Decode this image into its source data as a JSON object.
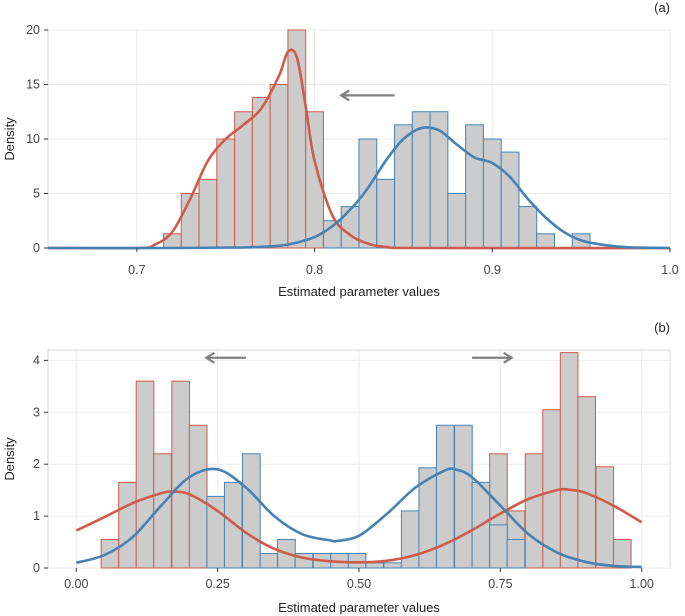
{
  "chart_data": [
    {
      "type": "histogram",
      "panel_label": "(a)",
      "xlabel": "Estimated parameter values",
      "ylabel": "Density",
      "xlim": [
        0.65,
        1.0
      ],
      "ylim": [
        0,
        20
      ],
      "xticks": [
        0.7,
        0.8,
        0.9,
        1.0
      ],
      "xtick_labels": [
        "0.7",
        "0.8",
        "0.9",
        "1.0"
      ],
      "yticks": [
        0,
        5,
        10,
        15,
        20
      ],
      "ytick_labels": [
        "0",
        "5",
        "10",
        "15",
        "20"
      ],
      "bin_width": 0.01,
      "series": [
        {
          "name": "red",
          "color": "#cd5c4a",
          "bin_starts": [
            0.715,
            0.725,
            0.735,
            0.745,
            0.755,
            0.765,
            0.775,
            0.785,
            0.795,
            0.805
          ],
          "values": [
            1.3,
            5,
            6.3,
            10,
            12.5,
            13.8,
            15,
            20,
            12.5,
            1.3
          ],
          "curve_x": [
            0.65,
            0.7,
            0.71,
            0.72,
            0.73,
            0.74,
            0.75,
            0.76,
            0.77,
            0.78,
            0.785,
            0.79,
            0.795,
            0.8,
            0.81,
            0.82,
            0.83,
            0.84,
            0.86,
            1.0
          ],
          "curve_y": [
            0,
            0,
            0.3,
            1.5,
            4.5,
            8,
            10,
            11.3,
            12.8,
            15.8,
            18,
            17.5,
            13,
            8,
            3,
            1.2,
            0.4,
            0.1,
            0,
            0
          ]
        },
        {
          "name": "blue",
          "color": "#4682b4",
          "bin_starts": [
            0.805,
            0.815,
            0.825,
            0.835,
            0.845,
            0.855,
            0.865,
            0.875,
            0.885,
            0.895,
            0.905,
            0.915,
            0.925,
            0.935,
            0.945
          ],
          "values": [
            2.5,
            3.8,
            10,
            6.3,
            11.3,
            12.5,
            12.5,
            5,
            11.3,
            10,
            8.8,
            3.8,
            1.3,
            0,
            1.3
          ],
          "curve_x": [
            0.65,
            0.72,
            0.76,
            0.78,
            0.79,
            0.8,
            0.81,
            0.82,
            0.83,
            0.84,
            0.85,
            0.86,
            0.87,
            0.88,
            0.89,
            0.9,
            0.91,
            0.92,
            0.93,
            0.94,
            0.95,
            0.96,
            0.97,
            0.98,
            1.0
          ],
          "curve_y": [
            0,
            0,
            0.05,
            0.2,
            0.5,
            1,
            2,
            3.5,
            5.5,
            8,
            10,
            11,
            10.8,
            9.5,
            8.3,
            7.8,
            6.5,
            4.5,
            2.8,
            1.5,
            0.7,
            0.35,
            0.15,
            0.05,
            0
          ]
        }
      ],
      "arrows": [
        {
          "direction": "left",
          "from": 0.845,
          "to": 0.815,
          "y": 14
        }
      ]
    },
    {
      "type": "histogram",
      "panel_label": "(b)",
      "xlabel": "Estimated parameter values",
      "ylabel": "Density",
      "xlim": [
        -0.05,
        1.05
      ],
      "ylim": [
        0,
        4.2
      ],
      "xticks": [
        0,
        0.25,
        0.5,
        0.75,
        1.0
      ],
      "xtick_labels": [
        "0.00",
        "0.25",
        "0.50",
        "0.75",
        "1.00"
      ],
      "yticks": [
        0,
        1,
        2,
        3,
        4
      ],
      "ytick_labels": [
        "0",
        "1",
        "2",
        "3",
        "4"
      ],
      "bin_width": 0.0312,
      "series": [
        {
          "name": "red",
          "color": "#cd5c4a",
          "bin_starts": [
            0.044,
            0.075,
            0.106,
            0.137,
            0.169,
            0.2,
            0.231,
            0.262,
            0.294,
            0.731,
            0.762,
            0.794,
            0.825,
            0.856,
            0.887,
            0.919,
            0.95
          ],
          "values": [
            0.55,
            1.65,
            3.6,
            2.2,
            3.6,
            2.75,
            0.8,
            0.8,
            0.4,
            2.2,
            1.1,
            2.2,
            3.05,
            4.15,
            3.3,
            1.95,
            0.55
          ],
          "curve_x": [
            0,
            0.05,
            0.1,
            0.15,
            0.17,
            0.2,
            0.25,
            0.3,
            0.35,
            0.4,
            0.45,
            0.5,
            0.55,
            0.6,
            0.65,
            0.7,
            0.75,
            0.8,
            0.85,
            0.87,
            0.9,
            0.95,
            1.0
          ],
          "curve_y": [
            0.72,
            0.98,
            1.25,
            1.44,
            1.47,
            1.42,
            1.1,
            0.68,
            0.37,
            0.2,
            0.13,
            0.11,
            0.14,
            0.25,
            0.45,
            0.73,
            1.05,
            1.33,
            1.5,
            1.51,
            1.45,
            1.2,
            0.88
          ]
        },
        {
          "name": "blue",
          "color": "#4682b4",
          "bin_starts": [
            0.231,
            0.262,
            0.294,
            0.325,
            0.356,
            0.387,
            0.419,
            0.45,
            0.481,
            0.512,
            0.544,
            0.575,
            0.606,
            0.637,
            0.669,
            0.7,
            0.731,
            0.762
          ],
          "values": [
            1.38,
            1.65,
            2.2,
            0.28,
            0.55,
            0.28,
            0.28,
            0.28,
            0.28,
            0.1,
            0.1,
            1.1,
            1.93,
            2.75,
            2.75,
            1.65,
            0.83,
            0.55
          ],
          "curve_x": [
            0,
            0.05,
            0.1,
            0.15,
            0.2,
            0.25,
            0.3,
            0.35,
            0.4,
            0.45,
            0.46,
            0.5,
            0.55,
            0.6,
            0.65,
            0.67,
            0.7,
            0.75,
            0.8,
            0.85,
            0.9,
            0.95,
            1.0
          ],
          "curve_y": [
            0.1,
            0.25,
            0.6,
            1.2,
            1.75,
            1.9,
            1.55,
            1.0,
            0.65,
            0.53,
            0.52,
            0.62,
            1.05,
            1.55,
            1.87,
            1.9,
            1.75,
            1.2,
            0.65,
            0.3,
            0.12,
            0.04,
            0.02
          ]
        }
      ],
      "arrows": [
        {
          "direction": "left",
          "from": 0.3,
          "to": 0.23,
          "y": 4.05
        },
        {
          "direction": "right",
          "from": 0.7,
          "to": 0.77,
          "y": 4.05
        }
      ]
    }
  ]
}
